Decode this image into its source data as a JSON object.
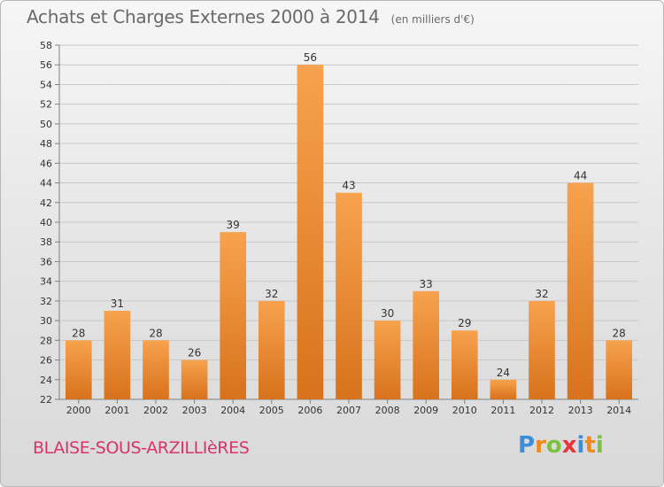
{
  "title": "Achats et Charges Externes 2000 à 2014",
  "unit_note": "(en milliers d'€)",
  "commune": "BLAISE-SOUS-ARZILLIèRES",
  "logo": {
    "text": "Proxiti",
    "letters": [
      {
        "ch": "P",
        "color": "#3a8fd8"
      },
      {
        "ch": "r",
        "color": "#f08a1c"
      },
      {
        "ch": "o",
        "color": "#7cc242"
      },
      {
        "ch": "x",
        "color": "#e8343b"
      },
      {
        "ch": "i",
        "color": "#3a8fd8"
      },
      {
        "ch": "t",
        "color": "#f08a1c"
      },
      {
        "ch": "i",
        "color": "#7cc242"
      }
    ]
  },
  "colors": {
    "bar_top": "#f7a24e",
    "bar_bottom": "#d8721c",
    "grid": "#c8c8c8",
    "axis": "#808080",
    "text": "#333333",
    "title": "#6a6a6a",
    "commune": "#d8336e"
  },
  "chart_data": {
    "type": "bar",
    "title": "Achats et Charges Externes 2000 à 2014",
    "xlabel": "",
    "ylabel": "",
    "categories": [
      "2000",
      "2001",
      "2002",
      "2003",
      "2004",
      "2005",
      "2006",
      "2007",
      "2008",
      "2009",
      "2010",
      "2011",
      "2012",
      "2013",
      "2014"
    ],
    "values": [
      28,
      31,
      28,
      26,
      39,
      32,
      56,
      43,
      30,
      33,
      29,
      24,
      32,
      44,
      28
    ],
    "ylim": [
      22,
      58
    ],
    "ytick_step": 2,
    "grid": true,
    "legend": "none",
    "data_labels": true
  }
}
